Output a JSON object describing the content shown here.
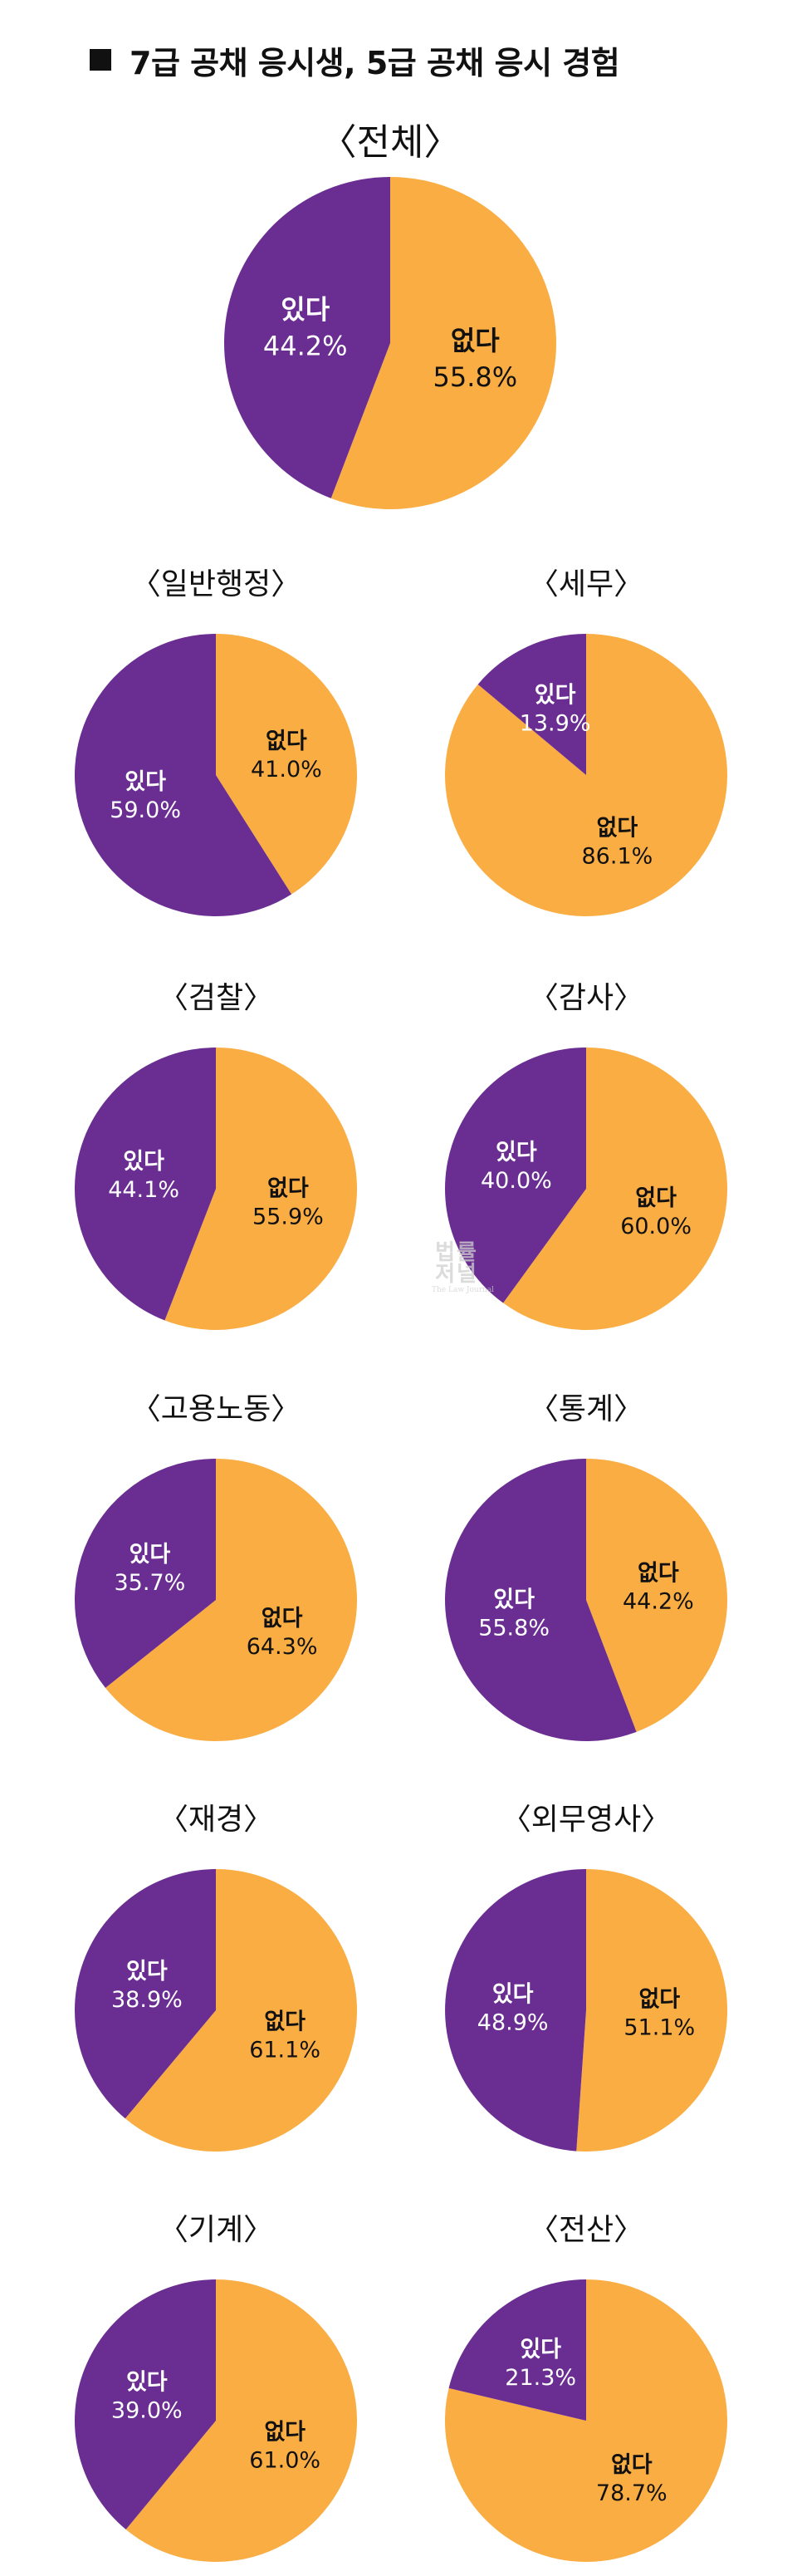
{
  "header": {
    "title": "7급 공채 응시생, 5급 공채 응시 경험"
  },
  "watermark": {
    "main": "법률저널",
    "sub": "The Law Journal"
  },
  "colors": {
    "yes": "#6a2d91",
    "no": "#f9ad43",
    "yes_text": "#ffffff",
    "no_text": "#111111"
  },
  "chart_data": [
    {
      "type": "pie",
      "title": "〈전체〉",
      "slices": [
        {
          "label": "없다",
          "value": 55.8,
          "display": "55.8%"
        },
        {
          "label": "있다",
          "value": 44.2,
          "display": "44.2%"
        }
      ]
    },
    {
      "type": "pie",
      "title": "〈일반행정〉",
      "slices": [
        {
          "label": "없다",
          "value": 41.0,
          "display": "41.0%"
        },
        {
          "label": "있다",
          "value": 59.0,
          "display": "59.0%"
        }
      ]
    },
    {
      "type": "pie",
      "title": "〈세무〉",
      "slices": [
        {
          "label": "없다",
          "value": 86.1,
          "display": "86.1%"
        },
        {
          "label": "있다",
          "value": 13.9,
          "display": "13.9%"
        }
      ]
    },
    {
      "type": "pie",
      "title": "〈검찰〉",
      "slices": [
        {
          "label": "없다",
          "value": 55.9,
          "display": "55.9%"
        },
        {
          "label": "있다",
          "value": 44.1,
          "display": "44.1%"
        }
      ]
    },
    {
      "type": "pie",
      "title": "〈감사〉",
      "slices": [
        {
          "label": "없다",
          "value": 60.0,
          "display": "60.0%"
        },
        {
          "label": "있다",
          "value": 40.0,
          "display": "40.0%"
        }
      ]
    },
    {
      "type": "pie",
      "title": "〈고용노동〉",
      "slices": [
        {
          "label": "없다",
          "value": 64.3,
          "display": "64.3%"
        },
        {
          "label": "있다",
          "value": 35.7,
          "display": "35.7%"
        }
      ]
    },
    {
      "type": "pie",
      "title": "〈통계〉",
      "slices": [
        {
          "label": "없다",
          "value": 44.2,
          "display": "44.2%"
        },
        {
          "label": "있다",
          "value": 55.8,
          "display": "55.8%"
        }
      ]
    },
    {
      "type": "pie",
      "title": "〈재경〉",
      "slices": [
        {
          "label": "없다",
          "value": 61.1,
          "display": "61.1%"
        },
        {
          "label": "있다",
          "value": 38.9,
          "display": "38.9%"
        }
      ]
    },
    {
      "type": "pie",
      "title": "〈외무영사〉",
      "slices": [
        {
          "label": "없다",
          "value": 51.1,
          "display": "51.1%"
        },
        {
          "label": "있다",
          "value": 48.9,
          "display": "48.9%"
        }
      ]
    },
    {
      "type": "pie",
      "title": "〈기계〉",
      "slices": [
        {
          "label": "없다",
          "value": 61.0,
          "display": "61.0%"
        },
        {
          "label": "있다",
          "value": 39.0,
          "display": "39.0%"
        }
      ]
    },
    {
      "type": "pie",
      "title": "〈전산〉",
      "slices": [
        {
          "label": "없다",
          "value": 78.7,
          "display": "78.7%"
        },
        {
          "label": "있다",
          "value": 21.3,
          "display": "21.3%"
        }
      ]
    }
  ]
}
